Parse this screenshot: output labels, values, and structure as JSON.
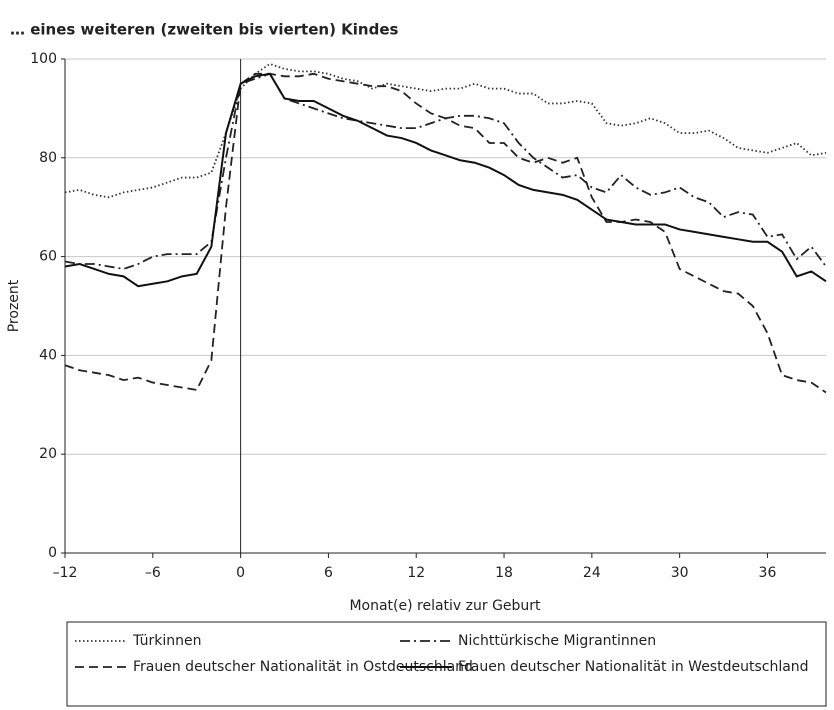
{
  "chart_data": {
    "type": "line",
    "title": "… eines weiteren (zweiten bis vierten) Kindes",
    "xlabel": "Monat(e) relativ zur Geburt",
    "ylabel": "Prozent",
    "x": [
      -12,
      -11,
      -10,
      -9,
      -8,
      -7,
      -6,
      -5,
      -4,
      -3,
      -2,
      -1,
      0,
      1,
      2,
      3,
      4,
      5,
      6,
      7,
      8,
      9,
      10,
      11,
      12,
      13,
      14,
      15,
      16,
      17,
      18,
      19,
      20,
      21,
      22,
      23,
      24,
      25,
      26,
      27,
      28,
      29,
      30,
      31,
      32,
      33,
      34,
      35,
      36,
      37,
      38,
      39,
      40
    ],
    "series": [
      {
        "name": "Türkinnen",
        "color": "#333333",
        "style": "dotted",
        "values": [
          73,
          73.5,
          72.5,
          72,
          73,
          73.5,
          74,
          75,
          76,
          76,
          77,
          85,
          94,
          97,
          99,
          98,
          97.5,
          97.5,
          97,
          96,
          95.5,
          94,
          95,
          94.5,
          94,
          93.5,
          94,
          94,
          95,
          94,
          94,
          93,
          93,
          91,
          91,
          91.5,
          91,
          87,
          86.5,
          87,
          88,
          87,
          85,
          85,
          85.5,
          84,
          82,
          81.5,
          81,
          82,
          83,
          80.5,
          81
        ]
      },
      {
        "name": "Nichttürkische Migrantinnen",
        "color": "#222222",
        "style": "dashdot",
        "values": [
          59,
          58.5,
          58.5,
          58,
          57.5,
          58.5,
          60,
          60.5,
          60.5,
          60.5,
          63,
          80,
          95,
          96,
          97,
          92,
          91,
          90,
          89,
          88,
          87.5,
          87,
          86.5,
          86,
          86,
          87,
          88,
          88.5,
          88.5,
          88,
          87,
          83,
          80,
          78,
          76,
          76.5,
          74,
          73,
          76.5,
          74,
          72.5,
          73,
          74,
          72,
          71,
          68,
          69,
          68.5,
          64,
          64.5,
          59.5,
          62,
          58
        ]
      },
      {
        "name": "Frauen deutscher Nationalität in Ostdeutschland",
        "color": "#222222",
        "style": "dashed",
        "values": [
          38,
          37,
          36.5,
          36,
          35,
          35.5,
          34.5,
          34,
          33.5,
          33,
          39,
          70,
          95,
          97,
          97,
          96.5,
          96.5,
          97,
          96,
          95.5,
          95,
          94.5,
          94.5,
          93.5,
          91,
          89,
          88,
          86.5,
          86,
          83,
          83,
          80,
          79,
          80,
          79,
          80,
          72,
          67,
          67,
          67.5,
          67,
          65,
          57.5,
          56,
          54.5,
          53,
          52.5,
          50,
          44.5,
          36,
          35,
          34.5,
          32.5
        ]
      },
      {
        "name": "Frauen deutscher Nationalität in Westdeutschland",
        "color": "#111111",
        "style": "solid",
        "values": [
          58,
          58.5,
          57.5,
          56.5,
          56,
          54,
          54.5,
          55,
          56,
          56.5,
          62,
          85,
          95,
          96.5,
          97,
          92,
          91.5,
          91.5,
          90,
          88.5,
          87.5,
          86,
          84.5,
          84,
          83,
          81.5,
          80.5,
          79.5,
          79,
          78,
          76.5,
          74.5,
          73.5,
          73,
          72.5,
          71.5,
          69.5,
          67.5,
          67,
          66.5,
          66.5,
          66.5,
          65.5,
          65,
          64.5,
          64,
          63.5,
          63,
          63,
          61,
          56,
          57,
          55
        ]
      }
    ],
    "xlim": [
      -12,
      40
    ],
    "ylim": [
      0,
      100
    ],
    "xticks": [
      {
        "value": -12,
        "label": "–12"
      },
      {
        "value": -6,
        "label": "–6"
      },
      0,
      6,
      12,
      18,
      24,
      30,
      36
    ],
    "yticks": [
      0,
      20,
      40,
      60,
      80,
      100
    ],
    "vline": 0,
    "grid": true,
    "legend": "bottom"
  }
}
